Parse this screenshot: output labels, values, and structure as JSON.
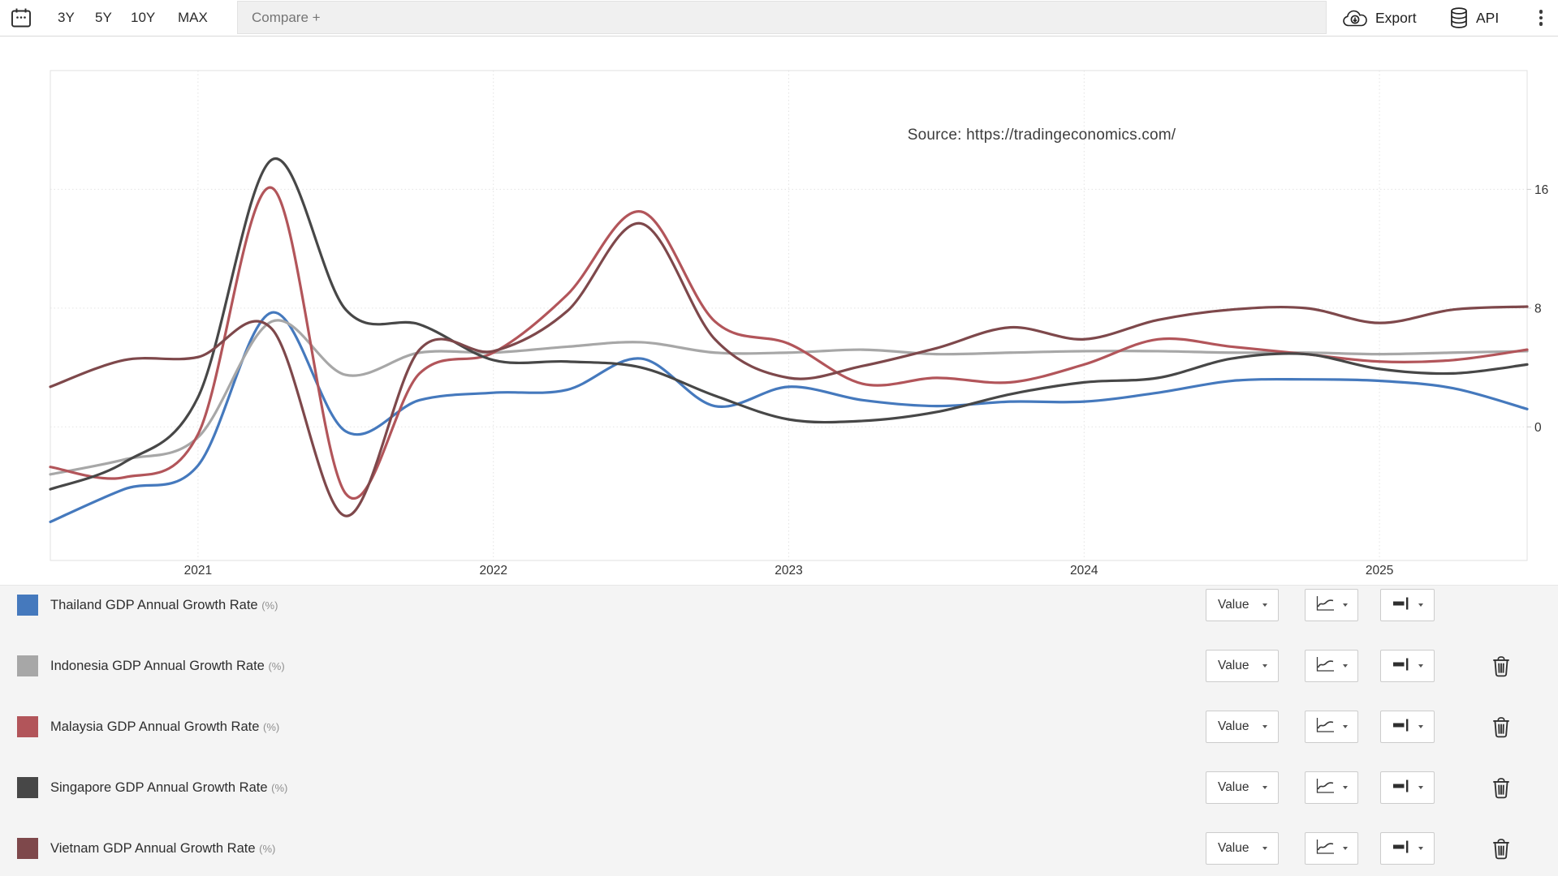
{
  "toolbar": {
    "range_buttons": [
      "3Y",
      "5Y",
      "10Y",
      "MAX"
    ],
    "compare_placeholder": "Compare +",
    "export_label": "Export",
    "api_label": "API"
  },
  "chart": {
    "source_text": "Source: https://tradingeconomics.com/"
  },
  "chart_data": {
    "type": "line",
    "title": "",
    "xlabel": "",
    "ylabel": "",
    "x": [
      "2020-Q3",
      "2020-Q4",
      "2021-Q1",
      "2021-Q2",
      "2021-Q3",
      "2021-Q4",
      "2022-Q1",
      "2022-Q2",
      "2022-Q3",
      "2022-Q4",
      "2023-Q1",
      "2023-Q2",
      "2023-Q3",
      "2023-Q4",
      "2024-Q1",
      "2024-Q2",
      "2024-Q3",
      "2024-Q4",
      "2025-Q1",
      "2025-Q2",
      "2025-Q3"
    ],
    "series": [
      {
        "name": "Thailand GDP Annual Growth Rate (%)",
        "color": "#4579bd",
        "values": [
          -6.4,
          -4.2,
          -2.6,
          7.7,
          -0.3,
          1.8,
          2.3,
          2.5,
          4.6,
          1.4,
          2.7,
          1.8,
          1.4,
          1.7,
          1.7,
          2.3,
          3.1,
          3.2,
          3.1,
          2.6,
          1.2
        ]
      },
      {
        "name": "Indonesia GDP Annual Growth Rate (%)",
        "color": "#a7a7a7",
        "values": [
          -3.2,
          -2.2,
          -0.7,
          7.1,
          3.5,
          5.0,
          5.0,
          5.4,
          5.7,
          5.0,
          5.0,
          5.2,
          4.9,
          5.0,
          5.1,
          5.1,
          5.0,
          5.0,
          4.9,
          5.0,
          5.1
        ]
      },
      {
        "name": "Malaysia GDP Annual Growth Rate (%)",
        "color": "#b2555a",
        "values": [
          -2.7,
          -3.4,
          -0.5,
          16.1,
          -4.5,
          3.6,
          5.0,
          8.9,
          14.5,
          7.1,
          5.6,
          2.9,
          3.3,
          3.0,
          4.2,
          5.9,
          5.4,
          4.9,
          4.4,
          4.5,
          5.2
        ]
      },
      {
        "name": "Singapore GDP Annual Growth Rate (%)",
        "color": "#474747",
        "values": [
          -4.2,
          -2.4,
          2.0,
          18.0,
          7.9,
          6.9,
          4.5,
          4.4,
          4.0,
          2.1,
          0.5,
          0.4,
          1.0,
          2.2,
          3.0,
          3.3,
          4.6,
          4.9,
          3.9,
          3.6,
          4.2
        ]
      },
      {
        "name": "Vietnam GDP Annual Growth Rate (%)",
        "color": "#7e484b",
        "values": [
          2.7,
          4.5,
          4.7,
          6.6,
          -6.0,
          5.2,
          5.1,
          7.8,
          13.7,
          5.9,
          3.3,
          4.1,
          5.3,
          6.7,
          5.9,
          7.2,
          7.9,
          8.0,
          7.0,
          7.9,
          8.1
        ]
      }
    ],
    "ylim": [
      -9,
      24
    ],
    "y_ticks": [
      {
        "label": "16",
        "value": 16
      },
      {
        "label": "8",
        "value": 8
      },
      {
        "label": "0",
        "value": 0
      }
    ],
    "x_ticks": [
      {
        "label": "2021",
        "pos": 2
      },
      {
        "label": "2022",
        "pos": 6
      },
      {
        "label": "2023",
        "pos": 10
      },
      {
        "label": "2024",
        "pos": 14
      },
      {
        "label": "2025",
        "pos": 18
      }
    ],
    "grid": "dotted",
    "legend_position": "bottom",
    "source_annotation": "Source: https://tradingeconomics.com/"
  },
  "legend": {
    "rows": [
      {
        "label": "Thailand GDP Annual Growth Rate",
        "unit": "(%)",
        "color": "#4579bd",
        "value_label": "Value",
        "deletable": false
      },
      {
        "label": "Indonesia GDP Annual Growth Rate",
        "unit": "(%)",
        "color": "#a7a7a7",
        "value_label": "Value",
        "deletable": true
      },
      {
        "label": "Malaysia GDP Annual Growth Rate",
        "unit": "(%)",
        "color": "#b2555a",
        "value_label": "Value",
        "deletable": true
      },
      {
        "label": "Singapore GDP Annual Growth Rate",
        "unit": "(%)",
        "color": "#474747",
        "value_label": "Value",
        "deletable": true
      },
      {
        "label": "Vietnam GDP Annual Growth Rate",
        "unit": "(%)",
        "color": "#7e484b",
        "value_label": "Value",
        "deletable": true
      }
    ]
  }
}
